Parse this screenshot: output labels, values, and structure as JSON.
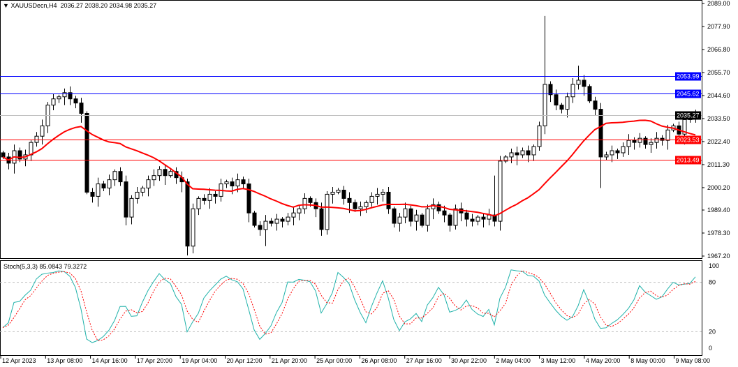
{
  "header": {
    "symbol_label": "XAUUSDecn,H4",
    "ohlc_label": "2036.27 2038.20 2034.98 2035.27",
    "dropdown_icon": "triangle-down-icon"
  },
  "stoch": {
    "label": "Stoch(5,3,3) 85.0843 79.3272",
    "levels": [
      80,
      20
    ],
    "scale_labels": [
      "100",
      "80",
      "20",
      "0"
    ],
    "main_color": "#20b2aa",
    "signal_color": "#ff0000"
  },
  "chart_data": {
    "type": "candlestick",
    "symbol": "XAUUSDecn",
    "timeframe": "H4",
    "ylim": [
      1967.2,
      2089.0
    ],
    "y_ticks": [
      "2089.00",
      "2077.90",
      "2066.80",
      "2055.70",
      "2044.60",
      "2033.50",
      "2022.40",
      "2011.30",
      "2000.20",
      "1989.40",
      "1978.30",
      "1967.20"
    ],
    "x_ticks": [
      "12 Apr 2023",
      "13 Apr 08:00",
      "14 Apr 16:00",
      "17 Apr 20:00",
      "19 Apr 04:00",
      "20 Apr 12:00",
      "21 Apr 20:00",
      "25 Apr 00:00",
      "26 Apr 08:00",
      "27 Apr 16:00",
      "30 Apr 22:00",
      "2 May 04:00",
      "3 May 12:00",
      "4 May 20:00",
      "8 May 00:00",
      "9 May 08:00"
    ],
    "closes": [
      2015,
      2012,
      2018,
      2014,
      2016,
      2022,
      2025,
      2030,
      2040,
      2043,
      2044,
      2046,
      2043,
      2041,
      2036,
      1998,
      1996,
      2002,
      2000,
      2004,
      2008,
      2003,
      1986,
      1995,
      1998,
      2000,
      2004,
      2006,
      2009,
      2006,
      2008,
      2005,
      2003,
      1972,
      1990,
      1995,
      1994,
      1997,
      1996,
      2002,
      2003,
      2001,
      2004,
      2002,
      1988,
      1982,
      1980,
      1984,
      1983,
      1985,
      1984,
      1986,
      1988,
      1990,
      1995,
      1993,
      1990,
      1980,
      1997,
      1998,
      1999,
      1995,
      1993,
      1990,
      1991,
      1993,
      1996,
      1997,
      1998,
      1990,
      1983,
      1986,
      1990,
      1984,
      1987,
      1982,
      1990,
      1992,
      1989,
      1987,
      1982,
      1990,
      1988,
      1985,
      1984,
      1986,
      1985,
      1987,
      1984,
      2013,
      2015,
      2017,
      2016,
      2018,
      2016,
      2020,
      2030,
      2050,
      2045,
      2040,
      2038,
      2044,
      2050,
      2052,
      2049,
      2042,
      2038,
      2015,
      2016,
      2018,
      2017,
      2020,
      2023,
      2022,
      2024,
      2021,
      2022,
      2024,
      2023,
      2028,
      2030,
      2026,
      2033,
      2035,
      2035.27
    ],
    "ma_color": "#ff0000",
    "hlines": [
      {
        "price": 2053.99,
        "label": "2053.99",
        "color": "#0000ff"
      },
      {
        "price": 2045.62,
        "label": "2045.62",
        "color": "#0000ff"
      },
      {
        "price": 2035.27,
        "label": "2035.27",
        "color": "#000000"
      },
      {
        "price": 2023.53,
        "label": "2023.53",
        "color": "#ff0000"
      },
      {
        "price": 2013.49,
        "label": "2013.49",
        "color": "#ff0000"
      }
    ]
  }
}
